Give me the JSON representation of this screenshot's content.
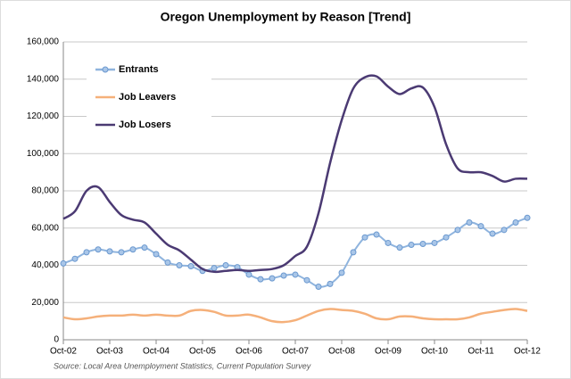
{
  "chart_data": {
    "type": "line",
    "title": "Oregon Unemployment by Reason [Trend]",
    "source": "Source: Local Area Unemployment Statistics, Current Population Survey",
    "categories": [
      "Oct-02",
      null,
      null,
      null,
      "Oct-03",
      null,
      null,
      null,
      "Oct-04",
      null,
      null,
      null,
      "Oct-05",
      null,
      null,
      null,
      "Oct-06",
      null,
      null,
      null,
      "Oct-07",
      null,
      null,
      null,
      "Oct-08",
      null,
      null,
      null,
      "Oct-09",
      null,
      null,
      null,
      "Oct-10",
      null,
      null,
      null,
      "Oct-11",
      null,
      null,
      null,
      "Oct-12"
    ],
    "series": [
      {
        "name": "Entrants",
        "color": "#8fb4de",
        "marker": true,
        "values": [
          41000,
          43500,
          47000,
          48500,
          47500,
          47000,
          48500,
          49500,
          46000,
          41500,
          40000,
          39500,
          37000,
          38500,
          40000,
          39000,
          35000,
          32500,
          33000,
          34500,
          35000,
          32000,
          28500,
          30000,
          36000,
          47000,
          55000,
          56500,
          52000,
          49500,
          51000,
          51500,
          52000,
          55000,
          59000,
          63000,
          61000,
          57000,
          59000,
          63000,
          65500
        ]
      },
      {
        "name": "Job Leavers",
        "color": "#f5b07a",
        "marker": false,
        "values": [
          12000,
          11000,
          11500,
          12500,
          13000,
          13000,
          13500,
          13000,
          13500,
          13000,
          13000,
          15500,
          16000,
          15000,
          13000,
          13000,
          13500,
          12000,
          10000,
          9500,
          10500,
          13000,
          15500,
          16500,
          16000,
          15500,
          14000,
          11500,
          11000,
          12500,
          12500,
          11500,
          11000,
          11000,
          11000,
          12000,
          14000,
          15000,
          16000,
          16500,
          15500
        ]
      },
      {
        "name": "Job Losers",
        "color": "#4b3a73",
        "marker": false,
        "values": [
          65000,
          69000,
          80000,
          82000,
          74000,
          67000,
          64500,
          63000,
          57000,
          51000,
          48000,
          43000,
          38000,
          36500,
          37000,
          37500,
          37000,
          37500,
          38000,
          40000,
          45000,
          50000,
          68000,
          95000,
          118000,
          135000,
          141000,
          141500,
          136000,
          132000,
          135000,
          135500,
          125000,
          105000,
          92000,
          90000,
          90000,
          88000,
          85000,
          86500,
          86500
        ]
      }
    ],
    "ylim": [
      0,
      160000
    ],
    "yticks": [
      0,
      {
        "value": 20000,
        "label": "20,000"
      },
      {
        "value": 40000,
        "label": "40,000"
      },
      {
        "value": 60000,
        "label": "60,000"
      },
      {
        "value": 80000,
        "label": "80,000"
      },
      {
        "value": 100000,
        "label": "100,000"
      },
      {
        "value": 120000,
        "label": "120,000"
      },
      {
        "value": 140000,
        "label": "140,000"
      },
      {
        "value": 160000,
        "label": "160,000"
      }
    ],
    "grid": true,
    "legend": "upper left"
  }
}
